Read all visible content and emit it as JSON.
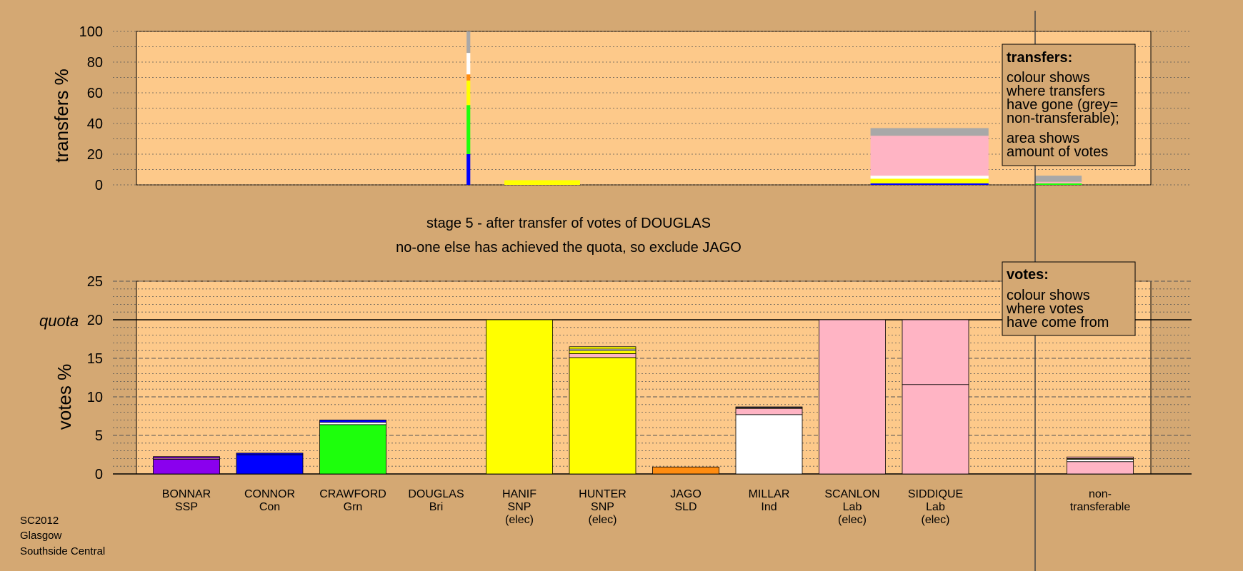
{
  "stage_line": "stage 5 - after transfer of votes of DOUGLAS",
  "action_line": "no-one else has achieved the quota, so exclude JAGO",
  "footer": [
    "SC2012",
    "Glasgow",
    "Southside Central"
  ],
  "transfers_key": {
    "title": "transfers:",
    "lines": [
      "colour shows",
      "where transfers",
      "have gone (grey=",
      "non-transferable);",
      "area shows",
      "amount of votes"
    ]
  },
  "votes_key": {
    "title": "votes:",
    "lines": [
      "colour shows",
      "where votes",
      "have come from"
    ]
  },
  "colors": {
    "background": "#d4a873",
    "plot_bg": "#fdc98a",
    "SSP": "#8a00ee",
    "Con": "#0000ff",
    "Grn": "#1dff0c",
    "SNP": "#ffff00",
    "SLD": "#ff8c10",
    "Ind": "#ffffff",
    "Lab": "#ffb4c4",
    "non_transferable": "#a8a8a8"
  },
  "chart_data": [
    {
      "type": "bar",
      "name": "transfers",
      "ylabel": "transfers %",
      "ylim": [
        0,
        100
      ],
      "yticks": [
        0,
        20,
        40,
        60,
        80,
        100
      ],
      "categories": [
        "BONNAR",
        "CONNOR",
        "CRAWFORD",
        "DOUGLAS",
        "HANIF",
        "HUNTER",
        "JAGO",
        "MILLAR",
        "SCANLON",
        "SIDDIQUE",
        "non-transferable"
      ],
      "bars": [
        {
          "x": 3.6,
          "width": 0.04,
          "segments": [
            [
              "Con",
              20
            ],
            [
              "Grn",
              32
            ],
            [
              "SNP",
              16
            ],
            [
              "SLD",
              4
            ],
            [
              "Ind",
              14
            ],
            [
              "non_transferable",
              14
            ]
          ]
        },
        {
          "x": 4.4,
          "width": 0.82,
          "segments": [
            [
              "SNP",
              3
            ]
          ]
        },
        {
          "x": 8.6,
          "width": 1.28,
          "segments": [
            [
              "Con",
              1
            ],
            [
              "SNP",
              3
            ],
            [
              "Ind",
              2
            ],
            [
              "Lab",
              26
            ],
            [
              "non_transferable",
              5
            ]
          ]
        },
        {
          "x": 10.0,
          "width": 0.5,
          "segments": [
            [
              "Grn",
              1
            ],
            [
              "Lab",
              1
            ],
            [
              "non_transferable",
              4
            ]
          ]
        }
      ]
    },
    {
      "type": "bar",
      "name": "votes",
      "ylabel": "votes %",
      "ylim": [
        0,
        25
      ],
      "yticks": [
        0,
        5,
        10,
        15,
        20,
        25
      ],
      "quota_label": "quota",
      "quota": 20,
      "candidates": [
        {
          "name": "BONNAR",
          "party": "SSP",
          "elected": "",
          "segments": [
            [
              "SSP",
              1.9
            ],
            [
              "Lab",
              0.15
            ],
            [
              "SSP",
              0.2
            ]
          ]
        },
        {
          "name": "CONNOR",
          "party": "Con",
          "elected": "",
          "segments": [
            [
              "Con",
              2.5
            ],
            [
              "Con",
              0.2
            ]
          ]
        },
        {
          "name": "CRAWFORD",
          "party": "Grn",
          "elected": "",
          "segments": [
            [
              "Grn",
              6.4
            ],
            [
              "Ind",
              0.3
            ],
            [
              "Con",
              0.3
            ]
          ]
        },
        {
          "name": "DOUGLAS",
          "party": "Bri",
          "elected": "",
          "segments": []
        },
        {
          "name": "HANIF",
          "party": "SNP",
          "elected": "(elec)",
          "segments": [
            [
              "SNP",
              20
            ]
          ]
        },
        {
          "name": "HUNTER",
          "party": "SNP",
          "elected": "(elec)",
          "segments": [
            [
              "SNP",
              15.1
            ],
            [
              "Lab",
              0.5
            ],
            [
              "SNP",
              0.4
            ],
            [
              "Ind",
              0.2
            ],
            [
              "SNP",
              0.3
            ]
          ]
        },
        {
          "name": "JAGO",
          "party": "SLD",
          "elected": "",
          "segments": [
            [
              "SLD",
              0.9
            ]
          ]
        },
        {
          "name": "MILLAR",
          "party": "Ind",
          "elected": "",
          "segments": [
            [
              "Ind",
              7.7
            ],
            [
              "Lab",
              0.8
            ],
            [
              "SNP",
              0.1
            ],
            [
              "Con",
              0.1
            ]
          ]
        },
        {
          "name": "SCANLON",
          "party": "Lab",
          "elected": "(elec)",
          "segments": [
            [
              "Lab",
              20
            ]
          ]
        },
        {
          "name": "SIDDIQUE",
          "party": "Lab",
          "elected": "(elec)",
          "segments": [
            [
              "Lab",
              11.6
            ],
            [
              "Lab",
              8.4
            ]
          ]
        },
        {
          "name": "non-",
          "party": "transferable",
          "elected": "",
          "segments": [
            [
              "Lab",
              1.6
            ],
            [
              "Ind",
              0.3
            ],
            [
              "SNP",
              0.1
            ],
            [
              "Lab",
              0.2
            ]
          ]
        }
      ]
    }
  ]
}
